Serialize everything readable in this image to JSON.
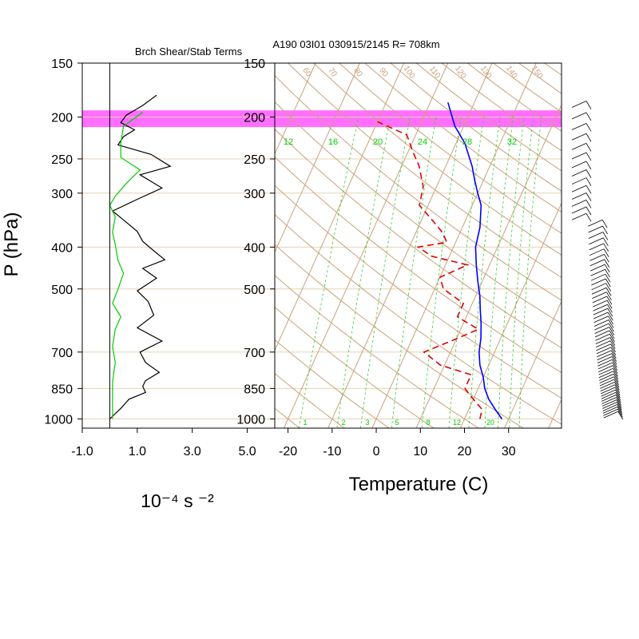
{
  "chart_data": [
    {
      "type": "line",
      "title": "Brch Shear/Stab Terms",
      "xlabel": "10⁻⁴ s ⁻²",
      "ylabel": "P (hPa)",
      "y_scale": "log",
      "xlim": [
        -1.0,
        6.0
      ],
      "ylim": [
        1050,
        150
      ],
      "x_ticks": [
        "-1.0",
        "1.0",
        "3.0",
        "5.0"
      ],
      "x_tick_values": [
        -1.0,
        1.0,
        3.0,
        5.0
      ],
      "y_ticks": [
        "150",
        "200",
        "250",
        "300",
        "400",
        "500",
        "700",
        "850",
        "1000"
      ],
      "y_tick_values": [
        150,
        200,
        250,
        300,
        400,
        500,
        700,
        850,
        1000
      ],
      "shaded_band_hpa": [
        193,
        211
      ],
      "series": [
        {
          "color": "#000000",
          "points": [
            [
              1.7,
              178
            ],
            [
              1.2,
              188
            ],
            [
              0.6,
              198
            ],
            [
              0.4,
              206
            ],
            [
              0.9,
              214
            ],
            [
              0.5,
              222
            ],
            [
              0.3,
              232
            ],
            [
              1.5,
              244
            ],
            [
              2.2,
              260
            ],
            [
              1.1,
              272
            ],
            [
              1.9,
              292
            ],
            [
              1.0,
              310
            ],
            [
              0.1,
              330
            ],
            [
              0.5,
              346
            ],
            [
              1.0,
              368
            ],
            [
              1.2,
              388
            ],
            [
              1.6,
              408
            ],
            [
              2.0,
              428
            ],
            [
              1.2,
              448
            ],
            [
              1.7,
              472
            ],
            [
              1.0,
              505
            ],
            [
              1.4,
              535
            ],
            [
              1.6,
              575
            ],
            [
              1.0,
              615
            ],
            [
              1.9,
              660
            ],
            [
              1.1,
              700
            ],
            [
              1.3,
              740
            ],
            [
              1.8,
              780
            ],
            [
              1.3,
              815
            ],
            [
              1.2,
              840
            ],
            [
              1.3,
              868
            ],
            [
              0.7,
              900
            ],
            [
              0.4,
              945
            ],
            [
              0.0,
              1000
            ]
          ]
        },
        {
          "color": "#00cc00",
          "points": [
            [
              1.2,
              195
            ],
            [
              0.5,
              210
            ],
            [
              0.4,
              230
            ],
            [
              0.4,
              248
            ],
            [
              1.1,
              265
            ],
            [
              0.6,
              285
            ],
            [
              0.2,
              305
            ],
            [
              0.0,
              320
            ],
            [
              0.2,
              340
            ],
            [
              0.1,
              370
            ],
            [
              0.2,
              395
            ],
            [
              0.3,
              430
            ],
            [
              0.5,
              460
            ],
            [
              0.3,
              500
            ],
            [
              0.1,
              540
            ],
            [
              0.4,
              580
            ],
            [
              0.2,
              620
            ],
            [
              0.1,
              680
            ],
            [
              0.2,
              740
            ],
            [
              0.1,
              820
            ],
            [
              0.1,
              900
            ],
            [
              0.1,
              1000
            ]
          ]
        }
      ]
    },
    {
      "type": "line",
      "title": "A190 03I01 030915/2145 R= 708km",
      "xlabel": "Temperature (C)",
      "xlim": [
        -23,
        42
      ],
      "x_ticks": [
        "-20",
        "-10",
        "0",
        "10",
        "20",
        "30"
      ],
      "x_tick_values": [
        -20,
        -10,
        0,
        10,
        20,
        30
      ],
      "y_scale": "log",
      "ylim": [
        1050,
        150
      ],
      "y_ticks": [
        "150",
        "200",
        "250",
        "300",
        "400",
        "500",
        "700",
        "850",
        "1000"
      ],
      "y_tick_values": [
        150,
        200,
        250,
        300,
        400,
        500,
        700,
        850,
        1000
      ],
      "skew_deg_per_decade": 44,
      "shaded_band_hpa": [
        193,
        211
      ],
      "dry_adiabat_labels": [
        "60",
        "70",
        "80",
        "90",
        "100",
        "110",
        "120",
        "130",
        "140",
        "150"
      ],
      "mixing_ratio_labels_top": [
        "12",
        "16",
        "20",
        "24",
        "28",
        "32"
      ],
      "mixing_ratio_labels_bottom": [
        "1",
        "2",
        "3",
        "5",
        "8",
        "12",
        "20"
      ],
      "series": [
        {
          "style": "solid",
          "color": "#0000ff",
          "points": [
            [
              28.5,
              1000
            ],
            [
              26,
              950
            ],
            [
              23.5,
              900
            ],
            [
              21.5,
              850
            ],
            [
              20,
              800
            ],
            [
              18,
              750
            ],
            [
              16.5,
              700
            ],
            [
              15.5,
              650
            ],
            [
              14,
              600
            ],
            [
              12.5,
              560
            ],
            [
              11,
              520
            ],
            [
              9,
              480
            ],
            [
              7,
              440
            ],
            [
              5,
              400
            ],
            [
              4,
              360
            ],
            [
              2,
              320
            ],
            [
              0,
              300
            ],
            [
              -2,
              280
            ],
            [
              -4,
              260
            ],
            [
              -8,
              230
            ],
            [
              -12,
              210
            ],
            [
              -16,
              185
            ]
          ]
        },
        {
          "style": "dashed",
          "color": "#dd0000",
          "points": [
            [
              23.5,
              1000
            ],
            [
              23,
              950
            ],
            [
              20,
              900
            ],
            [
              17,
              850
            ],
            [
              17,
              790
            ],
            [
              9,
              750
            ],
            [
              4,
              700
            ],
            [
              9,
              660
            ],
            [
              14,
              620
            ],
            [
              8,
              580
            ],
            [
              8,
              540
            ],
            [
              2,
              500
            ],
            [
              0,
              470
            ],
            [
              5,
              440
            ],
            [
              -4,
              420
            ],
            [
              -8,
              400
            ],
            [
              -2,
              390
            ],
            [
              -4,
              370
            ],
            [
              -7,
              350
            ],
            [
              -12,
              320
            ],
            [
              -13,
              290
            ],
            [
              -16,
              260
            ],
            [
              -19,
              240
            ],
            [
              -22,
              220
            ],
            [
              -30,
              205
            ]
          ]
        }
      ]
    }
  ]
}
